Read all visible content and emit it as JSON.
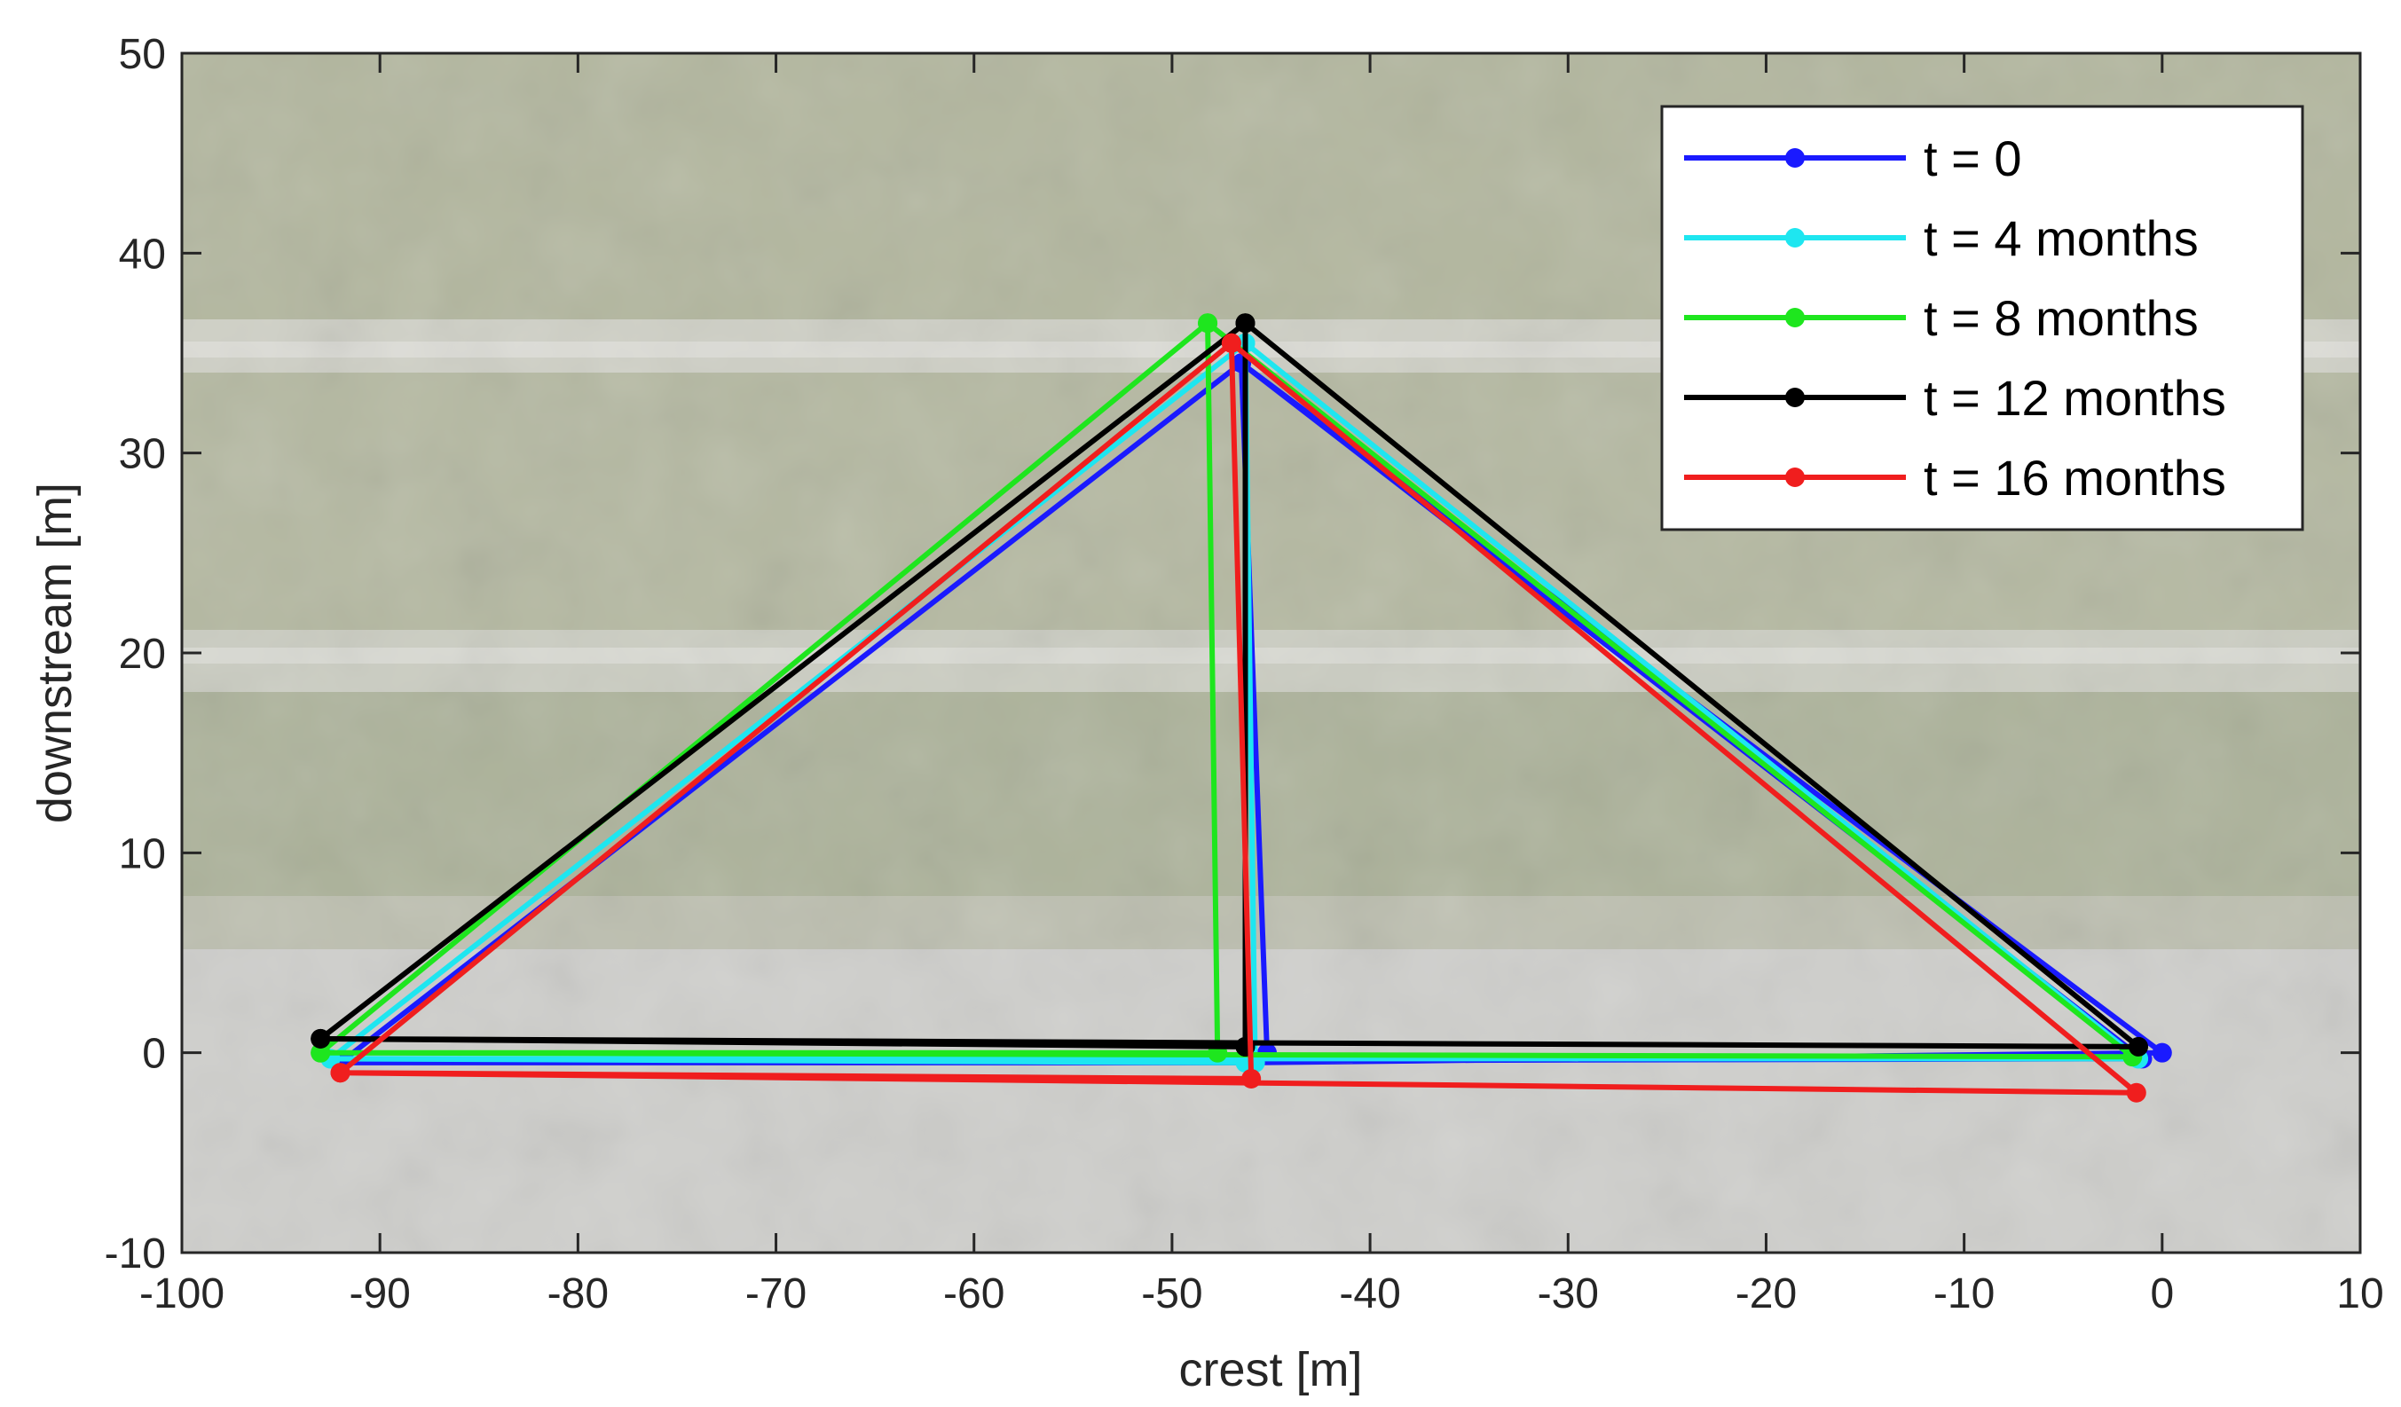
{
  "chart_data": {
    "type": "line",
    "xlabel": "crest [m]",
    "ylabel": "downstream [m]",
    "xlim": [
      -100,
      10
    ],
    "ylim": [
      -10,
      50
    ],
    "xticks": [
      -100,
      -90,
      -80,
      -70,
      -60,
      -50,
      -40,
      -30,
      -20,
      -10,
      0,
      10
    ],
    "yticks": [
      -10,
      0,
      10,
      20,
      30,
      40,
      50
    ],
    "legend_position": "top-right",
    "background": "aerial photograph",
    "series": [
      {
        "name": "t = 0",
        "color": "#1a1aff",
        "x": [
          -92.0,
          -46.5,
          -45.2,
          -46.0,
          -92.0,
          -1.0,
          -46.5,
          0.0,
          -46.0
        ],
        "y": [
          -0.5,
          34.5,
          0.0,
          -0.5,
          -0.5,
          -0.3,
          34.5,
          0.0,
          -0.5
        ]
      },
      {
        "name": "t = 4 months",
        "color": "#1ee6f0",
        "x": [
          -92.5,
          -46.3,
          -45.8,
          -46.3,
          -92.5,
          -1.2,
          -46.3,
          -1.2
        ],
        "y": [
          -0.3,
          35.5,
          -0.5,
          -0.5,
          -0.3,
          -0.3,
          35.5,
          -0.3
        ]
      },
      {
        "name": "t = 8 months",
        "color": "#1ee61e",
        "x": [
          -93.0,
          -48.2,
          -47.7,
          -93.0,
          -1.5,
          -48.2
        ],
        "y": [
          0.0,
          36.5,
          0.0,
          0.0,
          -0.2,
          36.5
        ]
      },
      {
        "name": "t = 12 months",
        "color": "#000000",
        "x": [
          -93.0,
          -46.3,
          -46.3,
          -93.0,
          -1.2,
          -46.3,
          -46.3
        ],
        "y": [
          0.7,
          36.5,
          0.3,
          0.7,
          0.3,
          36.5,
          0.3
        ]
      },
      {
        "name": "t = 16 months",
        "color": "#f01e1e",
        "x": [
          -92.0,
          -47.0,
          -46.0,
          -92.0,
          -1.3,
          -47.0
        ],
        "y": [
          -1.0,
          35.5,
          -1.3,
          -1.0,
          -2.0,
          35.5
        ]
      }
    ]
  }
}
